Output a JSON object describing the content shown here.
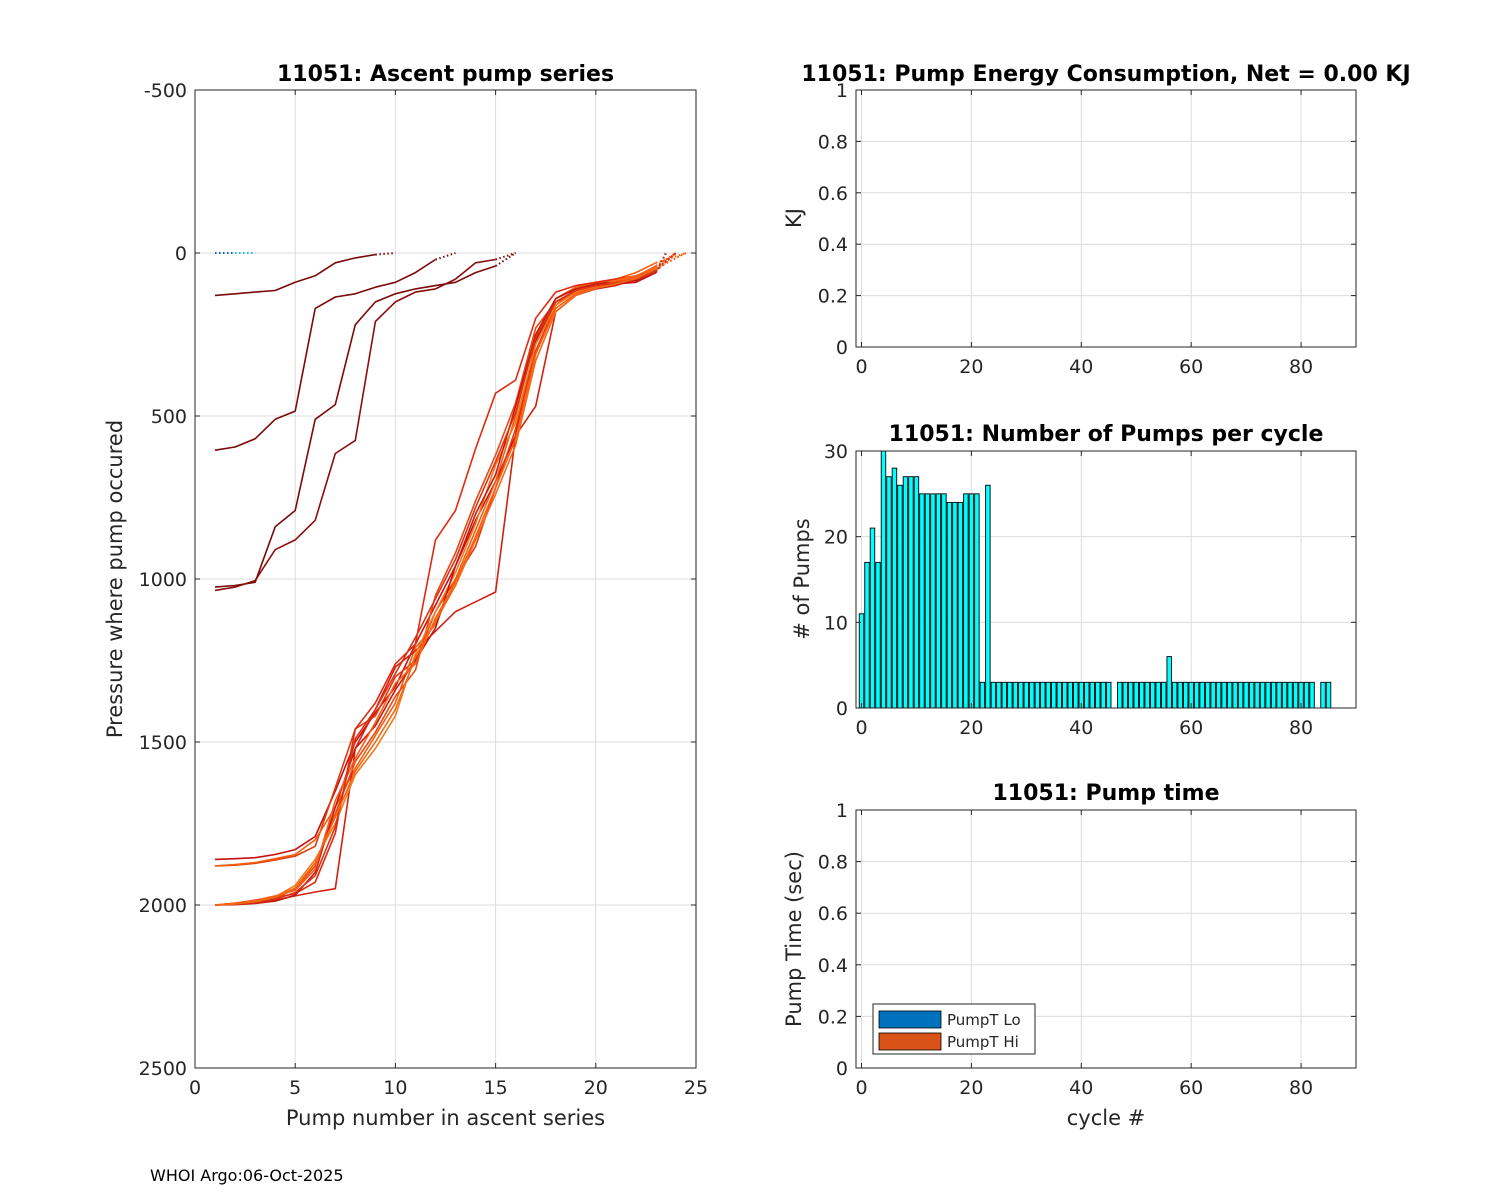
{
  "footer": "WHOI Argo:06-Oct-2025",
  "colors": {
    "bar_fill": "#00ffff",
    "bar_edge": "#000000",
    "lo": "#0072bd",
    "hi": "#d95319",
    "grid": "#dcdcdc",
    "axis": "#262626"
  },
  "chart_data": [
    {
      "id": "ascent",
      "type": "line",
      "title": "11051: Ascent pump series",
      "xlabel": "Pump number in ascent series",
      "ylabel": "Pressure where pump occured",
      "xlim": [
        0,
        25
      ],
      "ylim": [
        -500,
        2500
      ],
      "y_reversed": true,
      "xticks": [
        "0",
        "5",
        "10",
        "15",
        "20",
        "25"
      ],
      "yticks": [
        "-500",
        "0",
        "500",
        "1000",
        "1500",
        "2000",
        "2500"
      ],
      "series": [
        {
          "name": "surface-blue",
          "color": "#0d5fb0",
          "dotted": true,
          "x": [
            1,
            1.5,
            2,
            2.5,
            3
          ],
          "y": [
            0,
            0,
            0,
            0,
            0
          ]
        },
        {
          "name": "surface-cyan",
          "color": "#22c6e0",
          "dotted": true,
          "x": [
            2,
            2.5,
            3
          ],
          "y": [
            0,
            0,
            0
          ]
        },
        {
          "name": "near-surface-1",
          "color": "#7a0a0a",
          "x": [
            1,
            2,
            3,
            4,
            5,
            6,
            7,
            8,
            9
          ],
          "y": [
            130,
            125,
            120,
            115,
            90,
            70,
            30,
            15,
            5
          ],
          "tail": [
            9,
            10
          ]
        },
        {
          "name": "near-surface-2",
          "color": "#7a0a0a",
          "x": [
            1,
            2,
            3,
            4,
            5,
            6,
            7,
            8,
            9,
            10,
            11,
            12
          ],
          "y": [
            605,
            595,
            570,
            510,
            485,
            170,
            135,
            125,
            105,
            90,
            60,
            20
          ],
          "tail": [
            12,
            13
          ]
        },
        {
          "name": "near-surface-3",
          "color": "#7a0a0a",
          "x": [
            1,
            2,
            3,
            4,
            5,
            6,
            7,
            8,
            9,
            10,
            11,
            12,
            13,
            14,
            15
          ],
          "y": [
            1025,
            1020,
            1010,
            840,
            790,
            510,
            465,
            220,
            150,
            125,
            110,
            100,
            90,
            60,
            40
          ],
          "tail": [
            15,
            16
          ]
        },
        {
          "name": "near-surface-4",
          "color": "#8b0d0d",
          "x": [
            1,
            2,
            3,
            4,
            5,
            6,
            7,
            8,
            9,
            10,
            11,
            12,
            13,
            14,
            15
          ],
          "y": [
            1035,
            1025,
            1005,
            910,
            880,
            820,
            615,
            575,
            210,
            150,
            120,
            110,
            80,
            30,
            20
          ],
          "tail": [
            15,
            16
          ]
        },
        {
          "name": "deep-1",
          "color": "#c80f0f",
          "x": [
            1,
            2,
            3,
            4,
            5,
            6,
            7,
            8,
            9,
            10,
            11,
            12,
            13,
            14,
            15,
            16,
            17,
            18,
            19,
            20,
            21,
            22,
            23
          ],
          "y": [
            1860,
            1858,
            1855,
            1845,
            1830,
            1790,
            1650,
            1500,
            1410,
            1330,
            1200,
            1080,
            960,
            820,
            700,
            560,
            270,
            150,
            120,
            100,
            95,
            90,
            60
          ],
          "tail": [
            23,
            23.5
          ]
        },
        {
          "name": "deep-2",
          "color": "#e03a0a",
          "x": [
            1,
            2,
            3,
            4,
            5,
            6,
            7,
            8,
            9,
            10,
            11,
            12,
            13,
            14,
            15,
            16,
            17,
            18,
            19,
            20,
            21,
            22,
            23
          ],
          "y": [
            1880,
            1878,
            1872,
            1862,
            1850,
            1820,
            1640,
            1460,
            1420,
            1300,
            1250,
            1100,
            1000,
            900,
            720,
            540,
            300,
            160,
            110,
            95,
            85,
            80,
            50
          ],
          "tail": [
            23,
            24
          ]
        },
        {
          "name": "deep-3",
          "color": "#f06010",
          "x": [
            1,
            2,
            3,
            4,
            5,
            6,
            7,
            8,
            9,
            10,
            11,
            12,
            13,
            14,
            15,
            16,
            17,
            18,
            19,
            20,
            21,
            22,
            23
          ],
          "y": [
            1880,
            1876,
            1870,
            1858,
            1845,
            1800,
            1700,
            1580,
            1480,
            1380,
            1210,
            1140,
            1000,
            850,
            700,
            500,
            250,
            140,
            105,
            90,
            80,
            60,
            30
          ],
          "tail": [
            23,
            24.5
          ]
        },
        {
          "name": "deep-4",
          "color": "#d42010",
          "x": [
            1,
            2,
            3,
            4,
            5,
            6,
            7,
            8,
            9,
            10,
            11,
            12,
            13,
            14,
            15,
            16,
            17,
            18,
            19,
            20,
            21,
            22,
            23
          ],
          "y": [
            2000,
            1998,
            1993,
            1985,
            1972,
            1960,
            1950,
            1520,
            1400,
            1270,
            1220,
            1160,
            1100,
            1070,
            1040,
            560,
            470,
            180,
            130,
            110,
            100,
            80,
            40
          ],
          "tail": [
            23,
            24
          ]
        },
        {
          "name": "deep-5",
          "color": "#e12a10",
          "x": [
            1,
            2,
            3,
            4,
            5,
            6,
            7,
            8,
            9,
            10,
            11,
            12,
            13,
            14,
            15,
            16,
            17,
            18,
            19,
            20,
            21,
            22,
            23
          ],
          "y": [
            2000,
            1995,
            1985,
            1978,
            1965,
            1930,
            1780,
            1460,
            1380,
            1260,
            1200,
            880,
            790,
            600,
            430,
            390,
            200,
            120,
            100,
            90,
            80,
            70,
            50
          ],
          "tail": [
            23,
            24
          ]
        },
        {
          "name": "deep-6",
          "color": "#ea4812",
          "x": [
            1,
            2,
            3,
            4,
            5,
            6,
            7,
            8,
            9,
            10,
            11,
            12,
            13,
            14,
            15,
            16,
            17,
            18,
            19,
            20,
            21,
            22,
            23
          ],
          "y": [
            2000,
            1997,
            1990,
            1980,
            1950,
            1880,
            1720,
            1560,
            1470,
            1360,
            1280,
            1050,
            920,
            760,
            620,
            460,
            230,
            150,
            115,
            100,
            90,
            75,
            55
          ],
          "tail": [
            23,
            24
          ]
        },
        {
          "name": "deep-7",
          "color": "#f5781a",
          "x": [
            1,
            2,
            3,
            4,
            5,
            6,
            7,
            8,
            9,
            10,
            11,
            12,
            13,
            14,
            15,
            16,
            17,
            18,
            19,
            20,
            21,
            22,
            23
          ],
          "y": [
            2000,
            1996,
            1988,
            1975,
            1940,
            1860,
            1750,
            1600,
            1520,
            1420,
            1230,
            1100,
            980,
            830,
            650,
            520,
            280,
            160,
            120,
            100,
            85,
            70,
            45
          ],
          "tail": [
            23,
            24.5
          ]
        },
        {
          "name": "deep-8",
          "color": "#c41a0e",
          "x": [
            1,
            2,
            3,
            4,
            5,
            6,
            7,
            8,
            9,
            10,
            11,
            12,
            13,
            14,
            15,
            16,
            17,
            18,
            19,
            20,
            21,
            22,
            23
          ],
          "y": [
            2000,
            1999,
            1995,
            1988,
            1970,
            1900,
            1700,
            1520,
            1450,
            1340,
            1250,
            1150,
            960,
            800,
            680,
            470,
            250,
            140,
            110,
            95,
            90,
            85,
            60
          ],
          "tail": [
            23,
            23.5
          ]
        },
        {
          "name": "deep-9",
          "color": "#ff5a14",
          "x": [
            1,
            2,
            3,
            4,
            5,
            6,
            7,
            8,
            9,
            10,
            11,
            12,
            13,
            14,
            15,
            16,
            17,
            18,
            19,
            20,
            21,
            22,
            23
          ],
          "y": [
            2000,
            1994,
            1986,
            1972,
            1955,
            1890,
            1680,
            1550,
            1440,
            1320,
            1260,
            1120,
            1010,
            870,
            720,
            570,
            310,
            170,
            125,
            105,
            88,
            72,
            40
          ],
          "tail": [
            23,
            24
          ]
        },
        {
          "name": "deep-10",
          "color": "#dc3214",
          "x": [
            1,
            2,
            3,
            4,
            5,
            6,
            7,
            8,
            9,
            10,
            11,
            12,
            13,
            14,
            15,
            16,
            17,
            18,
            19,
            20,
            21,
            22,
            23
          ],
          "y": [
            2000,
            1998,
            1992,
            1982,
            1962,
            1910,
            1760,
            1490,
            1400,
            1290,
            1180,
            1060,
            940,
            780,
            640,
            490,
            260,
            150,
            115,
            100,
            92,
            80,
            55
          ],
          "tail": [
            23,
            24
          ]
        },
        {
          "name": "deep-11",
          "color": "#ee6a16",
          "x": [
            1,
            2,
            3,
            4,
            5,
            6,
            7,
            8,
            9,
            10,
            11,
            12,
            13,
            14,
            15,
            16,
            17,
            18,
            19,
            20,
            21,
            22,
            23
          ],
          "y": [
            2000,
            1997,
            1990,
            1976,
            1948,
            1870,
            1730,
            1590,
            1500,
            1400,
            1240,
            1130,
            1020,
            880,
            740,
            590,
            330,
            180,
            130,
            108,
            95,
            78,
            48
          ],
          "tail": [
            23,
            24.5
          ]
        }
      ]
    },
    {
      "id": "energy",
      "type": "bar",
      "title": "11051: Pump Energy Consumption,  Net =   0.00 KJ",
      "xlabel": "",
      "ylabel": "KJ",
      "xlim": [
        -1,
        90
      ],
      "ylim": [
        0,
        1
      ],
      "xticks": [
        "0",
        "20",
        "40",
        "60",
        "80"
      ],
      "yticks": [
        "0",
        "0.2",
        "0.4",
        "0.6",
        "0.8",
        "1"
      ],
      "values": []
    },
    {
      "id": "pumps",
      "type": "bar",
      "title": "11051: Number of Pumps per cycle",
      "xlabel": "",
      "ylabel": "# of Pumps",
      "xlim": [
        -1,
        90
      ],
      "ylim": [
        0,
        30
      ],
      "xticks": [
        "0",
        "20",
        "40",
        "60",
        "80"
      ],
      "yticks": [
        "0",
        "10",
        "20",
        "30"
      ],
      "x": [
        0,
        1,
        2,
        3,
        4,
        5,
        6,
        7,
        8,
        9,
        10,
        11,
        12,
        13,
        14,
        15,
        16,
        17,
        18,
        19,
        20,
        21,
        22,
        23,
        24,
        25,
        26,
        27,
        28,
        29,
        30,
        31,
        32,
        33,
        34,
        35,
        36,
        37,
        38,
        39,
        40,
        41,
        42,
        43,
        44,
        45,
        47,
        48,
        49,
        50,
        51,
        52,
        53,
        54,
        55,
        56,
        57,
        58,
        59,
        60,
        61,
        62,
        63,
        64,
        65,
        66,
        67,
        68,
        69,
        70,
        71,
        72,
        73,
        74,
        75,
        76,
        77,
        78,
        79,
        80,
        81,
        82,
        84,
        85
      ],
      "values": [
        11,
        17,
        21,
        17,
        30,
        27,
        28,
        26,
        27,
        27,
        27,
        25,
        25,
        25,
        25,
        25,
        24,
        24,
        24,
        25,
        25,
        25,
        3,
        26,
        3,
        3,
        3,
        3,
        3,
        3,
        3,
        3,
        3,
        3,
        3,
        3,
        3,
        3,
        3,
        3,
        3,
        3,
        3,
        3,
        3,
        3,
        3,
        3,
        3,
        3,
        3,
        3,
        3,
        3,
        3,
        6,
        3,
        3,
        3,
        3,
        3,
        3,
        3,
        3,
        3,
        3,
        3,
        3,
        3,
        3,
        3,
        3,
        3,
        3,
        3,
        3,
        3,
        3,
        3,
        3,
        3,
        3,
        3,
        3
      ]
    },
    {
      "id": "pumptime",
      "type": "bar",
      "title": "11051: Pump time",
      "xlabel": "cycle #",
      "ylabel": "Pump Time (sec)",
      "xlim": [
        -1,
        90
      ],
      "ylim": [
        0,
        1
      ],
      "xticks": [
        "0",
        "20",
        "40",
        "60",
        "80"
      ],
      "yticks": [
        "0",
        "0.2",
        "0.4",
        "0.6",
        "0.8",
        "1"
      ],
      "legend": [
        "PumpT Lo",
        "PumpT Hi"
      ],
      "legend_location": "bottom-left",
      "values": []
    }
  ]
}
